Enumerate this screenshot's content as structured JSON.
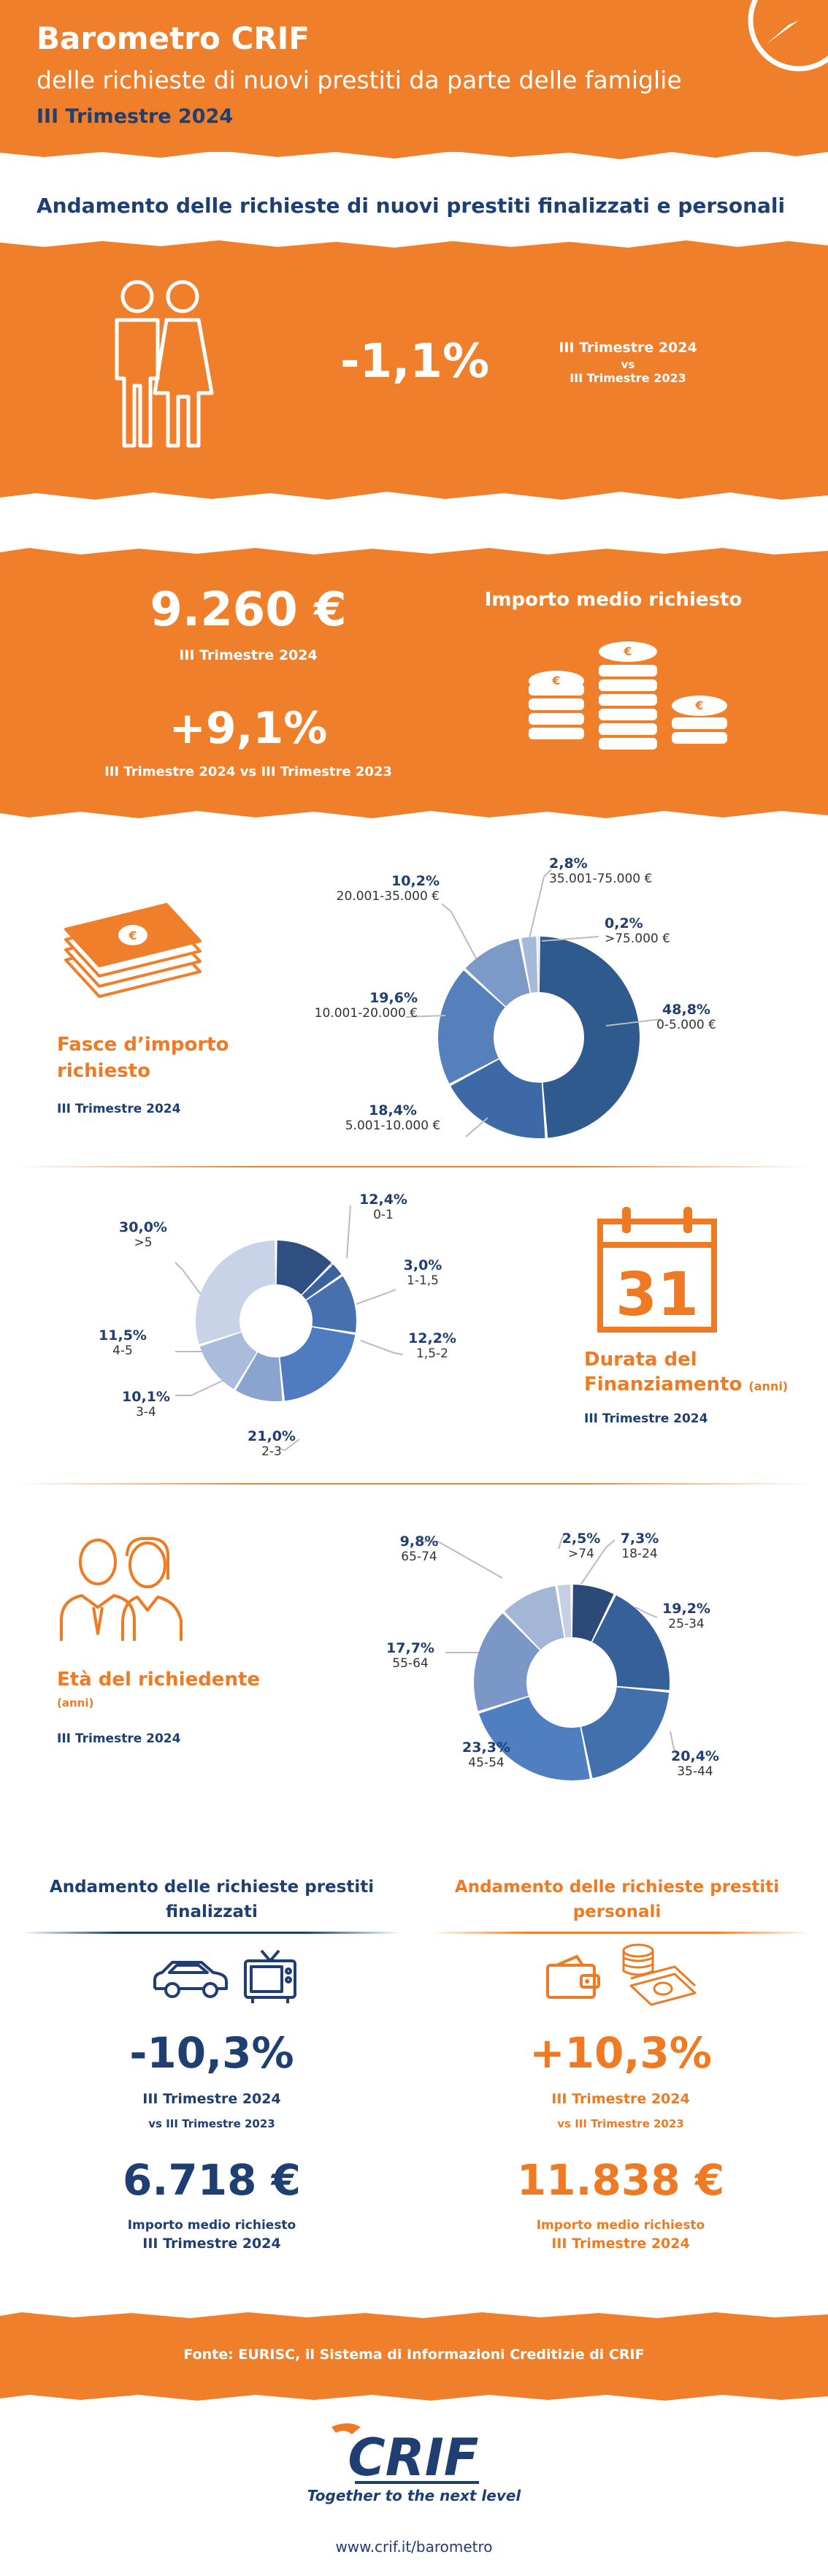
{
  "header": {
    "title": "Barometro CRIF",
    "subtitle": "delle richieste di nuovi prestiti da parte delle famiglie",
    "period": "III Trimestre 2024"
  },
  "section_title": "Andamento delle richieste di nuovi prestiti finalizzati e personali",
  "trend": {
    "value": "-1,1%",
    "line1": "III Trimestre 2024",
    "line2": "vs",
    "line3": "III Trimestre 2023"
  },
  "avg_amount": {
    "title": "Importo medio richiesto",
    "value": "9.260 €",
    "period": "III Trimestre 2024",
    "change": "+9,1%",
    "change_period": "III Trimestre 2024 vs III Trimestre 2023"
  },
  "amount_bands": {
    "title_line1": "Fasce d’importo",
    "title_line2": "richiesto",
    "period": "III Trimestre 2024",
    "labels": [
      {
        "pct": "48,8%",
        "range": "0-5.000 €"
      },
      {
        "pct": "18,4%",
        "range": "5.001-10.000 €"
      },
      {
        "pct": "19,6%",
        "range": "10.001-20.000 €"
      },
      {
        "pct": "10,2%",
        "range": "20.001-35.000 €"
      },
      {
        "pct": "2,8%",
        "range": "35.001-75.000 €"
      },
      {
        "pct": "0,2%",
        "range": ">75.000 €"
      }
    ]
  },
  "duration": {
    "title_line1": "Durata del",
    "title_line2": "Finanziamento",
    "unit": "(anni)",
    "period": "III Trimestre 2024",
    "calendar_day": "31",
    "labels": [
      {
        "pct": "12,4%",
        "range": "0-1"
      },
      {
        "pct": "3,0%",
        "range": "1-1,5"
      },
      {
        "pct": "12,2%",
        "range": "1,5-2"
      },
      {
        "pct": "21,0%",
        "range": "2-3"
      },
      {
        "pct": "10,1%",
        "range": "3-4"
      },
      {
        "pct": "11,5%",
        "range": "4-5"
      },
      {
        "pct": "30,0%",
        "range": ">5"
      }
    ]
  },
  "age": {
    "title": "Età del richiedente",
    "unit": "(anni)",
    "period": "III Trimestre 2024",
    "labels": [
      {
        "pct": "7,3%",
        "range": "18-24"
      },
      {
        "pct": "19,2%",
        "range": "25-34"
      },
      {
        "pct": "20,4%",
        "range": "35-44"
      },
      {
        "pct": "23,3%",
        "range": "45-54"
      },
      {
        "pct": "17,7%",
        "range": "55-64"
      },
      {
        "pct": "9,8%",
        "range": "65-74"
      },
      {
        "pct": "2,5%",
        "range": ">74"
      }
    ]
  },
  "chart_data": [
    {
      "type": "pie",
      "categories": [
        "0-5.000 €",
        "5.001-10.000 €",
        "10.001-20.000 €",
        "20.001-35.000 €",
        "35.001-75.000 €",
        ">75.000 €"
      ],
      "values": [
        48.8,
        18.4,
        19.6,
        10.2,
        2.8,
        0.2
      ],
      "colors": [
        "#2f5a8e",
        "#3d6aa6",
        "#5580bb",
        "#7c9ac8",
        "#a7b9d9",
        "#c9d5e8"
      ]
    },
    {
      "type": "pie",
      "categories": [
        "0-1",
        "1-1,5",
        "1,5-2",
        "2-3",
        "3-4",
        "4-5",
        ">5"
      ],
      "values": [
        12.4,
        3.0,
        12.2,
        21.0,
        10.1,
        11.5,
        30.0
      ],
      "colors": [
        "#2f4f80",
        "#3b62a0",
        "#4770ae",
        "#4f7cc0",
        "#8aa3cf",
        "#a9bcdc",
        "#c8d3e8"
      ]
    },
    {
      "type": "pie",
      "categories": [
        "18-24",
        "25-34",
        "35-44",
        "45-54",
        "55-64",
        "65-74",
        ">74"
      ],
      "values": [
        7.3,
        19.2,
        20.4,
        23.3,
        17.7,
        9.8,
        2.5
      ],
      "colors": [
        "#2c4a78",
        "#35609a",
        "#4270ad",
        "#4f7fc0",
        "#7a97c8",
        "#a4b6d6",
        "#c5d0e3"
      ]
    }
  ],
  "finalized": {
    "title_line1": "Andamento delle richieste prestiti",
    "title_line2": "finalizzati",
    "change": "-10,3%",
    "period": "III Trimestre 2024",
    "vs": "vs III Trimestre 2023",
    "amount": "6.718 €",
    "amount_label": "Importo medio richiesto",
    "amount_period": "III Trimestre 2024"
  },
  "personal": {
    "title_line1": "Andamento delle richieste prestiti",
    "title_line2": "personali",
    "change": "+10,3%",
    "period": "III Trimestre 2024",
    "vs": "vs III Trimestre 2023",
    "amount": "11.838 €",
    "amount_label": "Importo medio richiesto",
    "amount_period": "III Trimestre 2024"
  },
  "footer": {
    "source": "Fonte: EURISC, il Sistema di Informazioni Creditizie di CRIF",
    "logo_text": "CRIF",
    "tagline": "Together to the next level",
    "url": "www.crif.it/barometro"
  },
  "colors": {
    "orange": "#f07f2c",
    "navy": "#1f3f73"
  }
}
